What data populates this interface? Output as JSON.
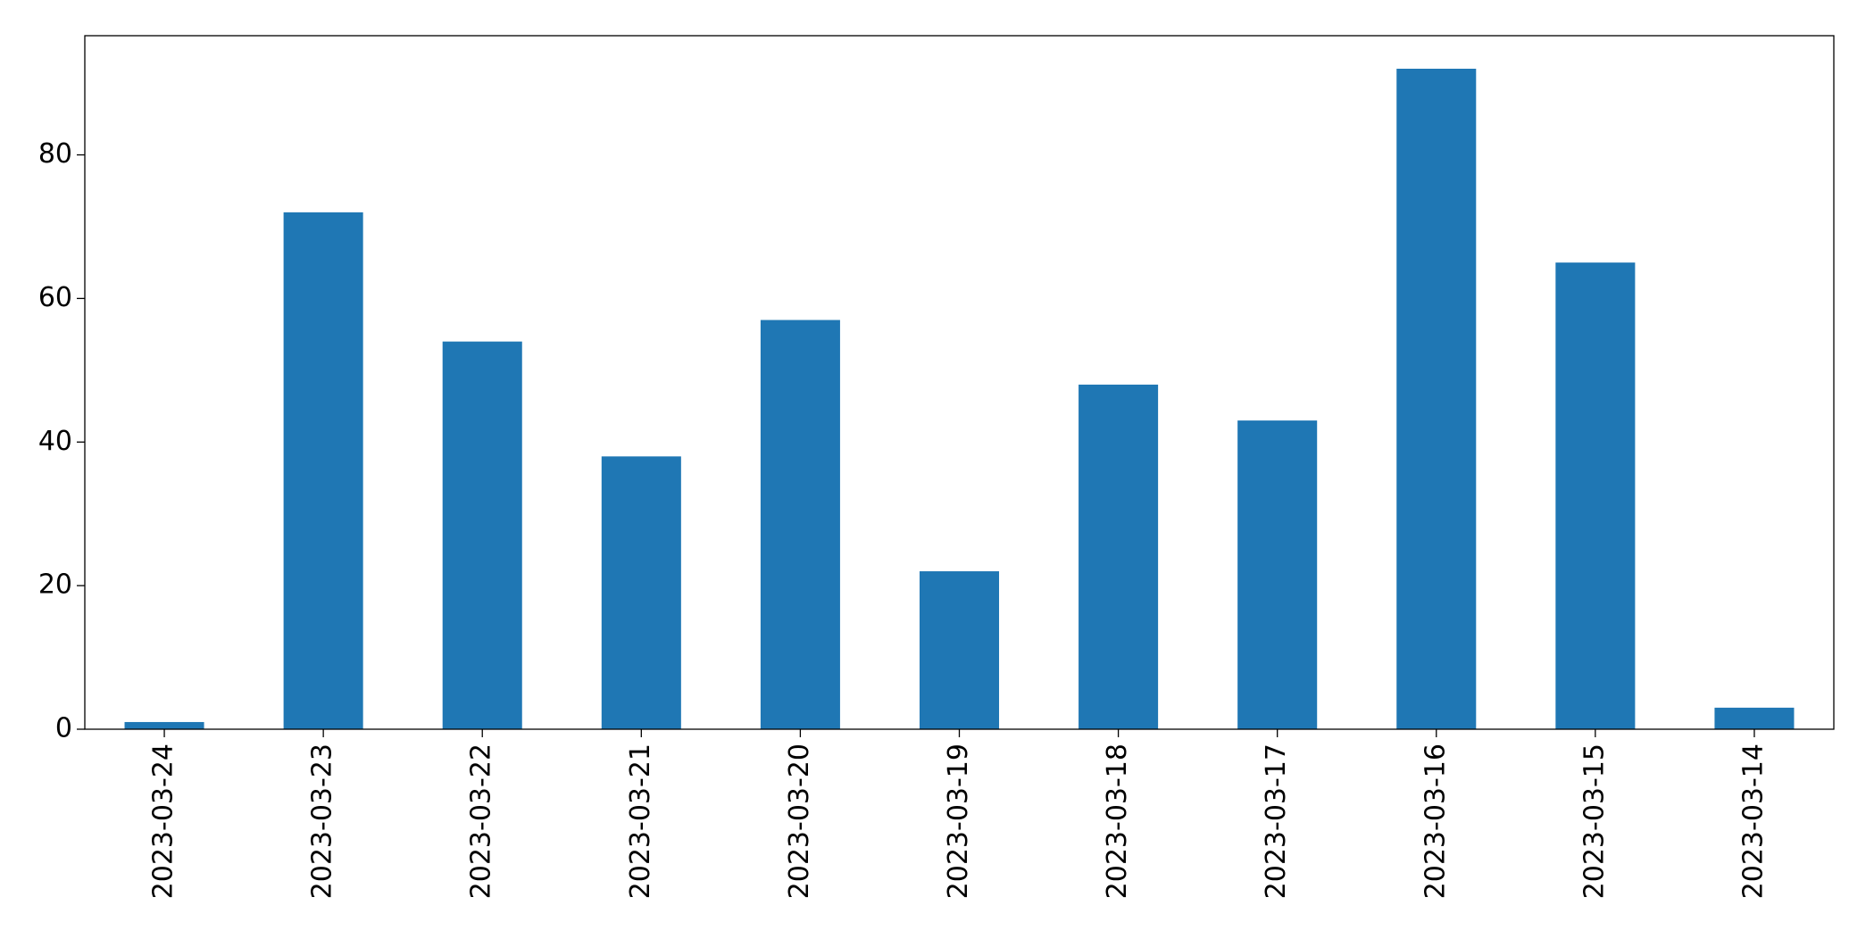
{
  "chart_data": {
    "type": "bar",
    "categories": [
      "2023-03-24",
      "2023-03-23",
      "2023-03-22",
      "2023-03-21",
      "2023-03-20",
      "2023-03-19",
      "2023-03-18",
      "2023-03-17",
      "2023-03-16",
      "2023-03-15",
      "2023-03-14"
    ],
    "values": [
      1,
      72,
      54,
      38,
      57,
      22,
      48,
      43,
      92,
      65,
      3
    ],
    "color": "#1f77b4",
    "ylim": [
      0,
      96.6
    ],
    "yticks": [
      0,
      20,
      40,
      60,
      80
    ],
    "grid": false
  }
}
